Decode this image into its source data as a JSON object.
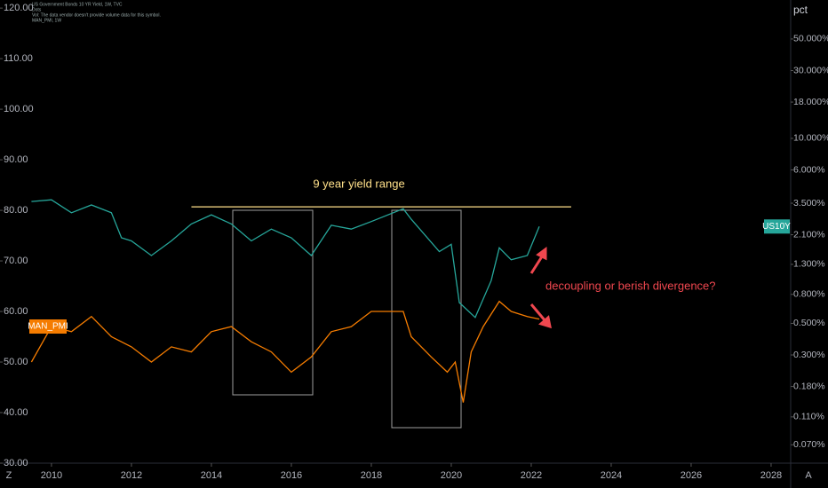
{
  "chart_data": {
    "type": "line",
    "header_lines": [
      "US Government Bonds 10 YR Yield, 1W, TVC",
      "Dots",
      "Vol: The data vendor doesn't provide volume data for this symbol.",
      "MAN_PMI, 1W"
    ],
    "y2_label": "pct",
    "xlim": [
      2009.49,
      2028.49
    ],
    "xticks": [
      2010,
      2012,
      2014,
      2016,
      2018,
      2020,
      2022,
      2024,
      2026,
      2028
    ],
    "ylim": [
      30,
      121.6
    ],
    "yticks": [
      {
        "value": 30,
        "label": "30.00"
      },
      {
        "value": 40,
        "label": "40.00"
      },
      {
        "value": 50,
        "label": "50.00"
      },
      {
        "value": 60,
        "label": "60.00"
      },
      {
        "value": 70,
        "label": "70.00"
      },
      {
        "value": 80,
        "label": "80.00"
      },
      {
        "value": 90,
        "label": "90.00"
      },
      {
        "value": 100,
        "label": "100.00"
      },
      {
        "value": 110,
        "label": "110.00"
      },
      {
        "value": 120,
        "label": "120.00"
      }
    ],
    "y2lim": [
      0.052,
      94
    ],
    "y2log": true,
    "y2ticks": [
      {
        "value": 0.07,
        "label": "0.070%"
      },
      {
        "value": 0.11,
        "label": "0.110%"
      },
      {
        "value": 0.18,
        "label": "0.180%"
      },
      {
        "value": 0.3,
        "label": "0.300%"
      },
      {
        "value": 0.5,
        "label": "0.500%"
      },
      {
        "value": 0.8,
        "label": "0.800%"
      },
      {
        "value": 1.3,
        "label": "1.300%"
      },
      {
        "value": 2.1,
        "label": "2.100%"
      },
      {
        "value": 3.5,
        "label": "3.500%"
      },
      {
        "value": 6,
        "label": "6.000%"
      },
      {
        "value": 10,
        "label": "10.000%"
      },
      {
        "value": 18,
        "label": "18.000%"
      },
      {
        "value": 30,
        "label": "30.000%"
      },
      {
        "value": 50,
        "label": "50.000%"
      }
    ],
    "grid": false,
    "series": [
      {
        "name": "US10Y",
        "color": "#26a69a",
        "axis": "y2",
        "x": [
          2009.5,
          2010,
          2010.5,
          2011,
          2011.5,
          2011.75,
          2012,
          2012.5,
          2013,
          2013.5,
          2014,
          2014.5,
          2015,
          2015.5,
          2016,
          2016.5,
          2017,
          2017.5,
          2018,
          2018.8,
          2019,
          2019.7,
          2020,
          2020.2,
          2020.6,
          2021,
          2021.2,
          2021.5,
          2021.9,
          2022.2
        ],
        "values": [
          3.6,
          3.7,
          3.0,
          3.4,
          3.0,
          2.0,
          1.9,
          1.5,
          1.9,
          2.5,
          2.9,
          2.5,
          1.9,
          2.3,
          2.0,
          1.5,
          2.45,
          2.3,
          2.6,
          3.2,
          2.7,
          1.6,
          1.8,
          0.7,
          0.55,
          1.0,
          1.7,
          1.4,
          1.5,
          2.4
        ]
      },
      {
        "name": "MAN_PMI",
        "color": "#f57c00",
        "axis": "y",
        "x": [
          2009.5,
          2010,
          2010.5,
          2011,
          2011.5,
          2012,
          2012.5,
          2013,
          2013.5,
          2014,
          2014.5,
          2015,
          2015.5,
          2016,
          2016.5,
          2017,
          2017.5,
          2018,
          2018.5,
          2018.8,
          2019,
          2019.5,
          2019.9,
          2020.1,
          2020.3,
          2020.5,
          2020.8,
          2021.2,
          2021.5,
          2021.9,
          2022.2
        ],
        "values": [
          50,
          57,
          56,
          59,
          55,
          53,
          50,
          53,
          52,
          56,
          57,
          54,
          52,
          48,
          51,
          56,
          57,
          60,
          60,
          60,
          55,
          51,
          48,
          50,
          42,
          52,
          57,
          62,
          60,
          59,
          58.5
        ]
      }
    ],
    "range_line": {
      "value": 3.3,
      "x": [
        2013.5,
        2023
      ]
    },
    "annotations": [
      "9 year yield range",
      "decoupling or berish divergence?"
    ],
    "buttons": [
      "Z",
      "A"
    ]
  }
}
